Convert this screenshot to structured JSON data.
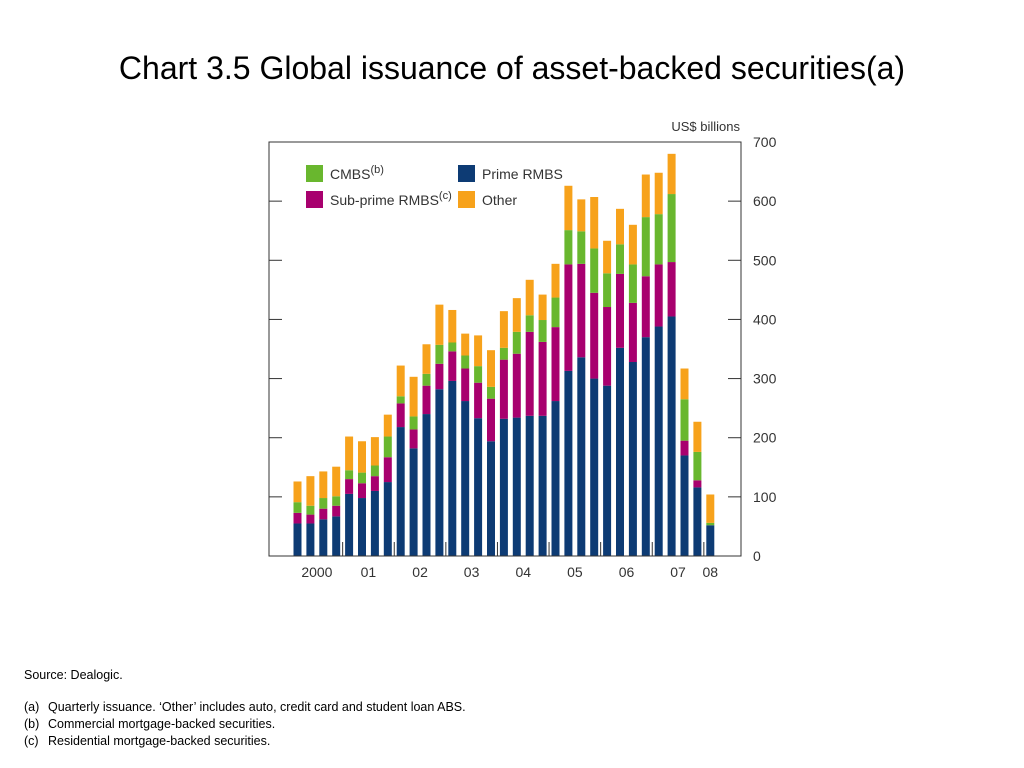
{
  "title": "Chart 3.5  Global issuance of asset-backed securities(a)",
  "chart_data": {
    "type": "bar",
    "stacked": true,
    "unit_label": "US$ billions",
    "ylim": [
      0,
      700
    ],
    "y_ticks": [
      0,
      100,
      200,
      300,
      400,
      500,
      600,
      700
    ],
    "y_axis_side": "right",
    "x_tick_labels": [
      "2000",
      "01",
      "02",
      "03",
      "04",
      "05",
      "06",
      "07",
      "08"
    ],
    "x_label_start_quarter": [
      0,
      4,
      8,
      12,
      16,
      20,
      24,
      28,
      32
    ],
    "grid": false,
    "legend_position": "top-left",
    "categories": [
      "2000Q1",
      "2000Q2",
      "2000Q3",
      "2000Q4",
      "2001Q1",
      "2001Q2",
      "2001Q3",
      "2001Q4",
      "2002Q1",
      "2002Q2",
      "2002Q3",
      "2002Q4",
      "2003Q1",
      "2003Q2",
      "2003Q3",
      "2003Q4",
      "2004Q1",
      "2004Q2",
      "2004Q3",
      "2004Q4",
      "2005Q1",
      "2005Q2",
      "2005Q3",
      "2005Q4",
      "2006Q1",
      "2006Q2",
      "2006Q3",
      "2006Q4",
      "2007Q1",
      "2007Q2",
      "2007Q3",
      "2007Q4",
      "2008Q1"
    ],
    "series": [
      {
        "name": "Prime RMBS",
        "color": "#0d3b74",
        "values": [
          55,
          55,
          62,
          67,
          105,
          98,
          110,
          125,
          218,
          182,
          240,
          282,
          296,
          262,
          233,
          194,
          232,
          234,
          237,
          237,
          262,
          313,
          336,
          300,
          288,
          352,
          328,
          370,
          388,
          405,
          170,
          116,
          52
        ]
      },
      {
        "name": "Sub-prime RMBS",
        "color": "#a8006e",
        "values": [
          18,
          15,
          18,
          18,
          25,
          25,
          25,
          42,
          40,
          32,
          48,
          43,
          50,
          55,
          60,
          72,
          100,
          108,
          142,
          125,
          125,
          180,
          158,
          145,
          133,
          125,
          100,
          103,
          105,
          92,
          25,
          12,
          0
        ]
      },
      {
        "name": "CMBS",
        "color": "#69b72e",
        "values": [
          18,
          15,
          18,
          16,
          15,
          18,
          18,
          35,
          12,
          22,
          20,
          32,
          15,
          22,
          28,
          20,
          20,
          37,
          28,
          37,
          50,
          58,
          55,
          75,
          57,
          50,
          65,
          100,
          85,
          115,
          70,
          48,
          4
        ]
      },
      {
        "name": "Other",
        "color": "#f7a21b",
        "values": [
          35,
          50,
          45,
          50,
          57,
          53,
          48,
          37,
          52,
          67,
          50,
          68,
          55,
          37,
          52,
          62,
          62,
          57,
          60,
          43,
          57,
          75,
          54,
          87,
          55,
          60,
          67,
          72,
          70,
          68,
          52,
          51,
          48
        ]
      }
    ],
    "legend": [
      {
        "label": "CMBS",
        "superscript": "(b)",
        "color": "#69b72e"
      },
      {
        "label": "Prime RMBS",
        "superscript": "",
        "color": "#0d3b74"
      },
      {
        "label": "Sub-prime RMBS",
        "superscript": "(c)",
        "color": "#a8006e"
      },
      {
        "label": "Other",
        "superscript": "",
        "color": "#f7a21b"
      }
    ]
  },
  "notes": {
    "source": "Source:  Dealogic.",
    "items": [
      {
        "tag": "(a)",
        "text": "Quarterly issuance.  ‘Other’ includes auto, credit card and student loan ABS."
      },
      {
        "tag": "(b)",
        "text": "Commercial mortgage-backed securities."
      },
      {
        "tag": "(c)",
        "text": "Residential mortgage-backed securities."
      }
    ]
  }
}
